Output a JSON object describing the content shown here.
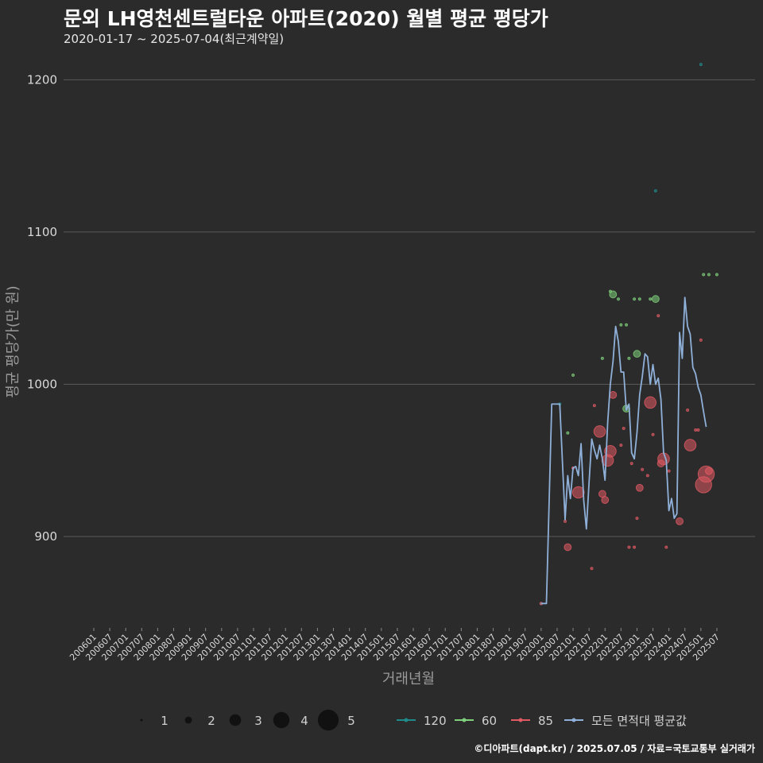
{
  "title": "문외 LH영천센트럴타운 아파트(2020) 월별 평균 평당가",
  "subtitle": "2020-01-17 ~ 2025-07-04(최근계약일)",
  "footer": "©디아파트(dapt.kr) / 2025.07.05 / 자료=국토교통부 실거래가",
  "colors": {
    "background": "#2b2b2c",
    "grid": "#5a5a5a",
    "s120": "#1f8a8a",
    "s60": "#7fd17a",
    "s85": "#e05a63",
    "avg": "#8fb0d8",
    "size_dot": "#111111"
  },
  "chart_data": {
    "type": "scatter",
    "title": "문외 LH영천센트럴타운 아파트(2020) 월별 평균 평당가",
    "xlabel": "거래년월",
    "ylabel": "평균 평당가(만 원)",
    "ylim": [
      840,
      1220
    ],
    "yticks": [
      900,
      1000,
      1100,
      1200
    ],
    "xlim_month_index": [
      0,
      237
    ],
    "xticks": [
      "200601",
      "200607",
      "200701",
      "200707",
      "200801",
      "200807",
      "200901",
      "200907",
      "201001",
      "201007",
      "201101",
      "201107",
      "201201",
      "201207",
      "201301",
      "201307",
      "201401",
      "201407",
      "201501",
      "201507",
      "201601",
      "201607",
      "201701",
      "201707",
      "201801",
      "201807",
      "201901",
      "201907",
      "202001",
      "202007",
      "202101",
      "202107",
      "202201",
      "202207",
      "202301",
      "202307",
      "202401",
      "202407",
      "202501",
      "202507"
    ],
    "size_legend": {
      "values": [
        1,
        2,
        3,
        4,
        5
      ]
    },
    "color_legend": {
      "entries": [
        "120",
        "60",
        "85",
        "모든 면적대 평균값"
      ]
    },
    "series": [
      {
        "name": "120",
        "color_key": "s120",
        "points": [
          {
            "ym": "202001",
            "y": 856,
            "n": 1
          },
          {
            "ym": "202008",
            "y": 987,
            "n": 1
          },
          {
            "ym": "202308",
            "y": 1127,
            "n": 1
          },
          {
            "ym": "202501",
            "y": 1210,
            "n": 1
          }
        ]
      },
      {
        "name": "60",
        "color_key": "s60",
        "points": [
          {
            "ym": "202011",
            "y": 968,
            "n": 1
          },
          {
            "ym": "202101",
            "y": 1006,
            "n": 1
          },
          {
            "ym": "202112",
            "y": 1017,
            "n": 1
          },
          {
            "ym": "202203",
            "y": 1061,
            "n": 1
          },
          {
            "ym": "202204",
            "y": 1059,
            "n": 2
          },
          {
            "ym": "202206",
            "y": 1056,
            "n": 1
          },
          {
            "ym": "202207",
            "y": 1039,
            "n": 1
          },
          {
            "ym": "202209",
            "y": 1039,
            "n": 1
          },
          {
            "ym": "202210",
            "y": 1017,
            "n": 1
          },
          {
            "ym": "202209",
            "y": 984,
            "n": 2
          },
          {
            "ym": "202212",
            "y": 1056,
            "n": 1
          },
          {
            "ym": "202301",
            "y": 1020,
            "n": 2
          },
          {
            "ym": "202302",
            "y": 1056,
            "n": 1
          },
          {
            "ym": "202306",
            "y": 1056,
            "n": 1
          },
          {
            "ym": "202308",
            "y": 1056,
            "n": 2
          },
          {
            "ym": "202502",
            "y": 1072,
            "n": 1
          },
          {
            "ym": "202504",
            "y": 1072,
            "n": 1
          },
          {
            "ym": "202507",
            "y": 1072,
            "n": 1
          }
        ]
      },
      {
        "name": "85",
        "color_key": "s85",
        "points": [
          {
            "ym": "202001",
            "y": 856,
            "n": 1
          },
          {
            "ym": "202010",
            "y": 910,
            "n": 1
          },
          {
            "ym": "202011",
            "y": 893,
            "n": 2
          },
          {
            "ym": "202101",
            "y": 945,
            "n": 1
          },
          {
            "ym": "202103",
            "y": 929,
            "n": 3
          },
          {
            "ym": "202108",
            "y": 879,
            "n": 1
          },
          {
            "ym": "202109",
            "y": 986,
            "n": 1
          },
          {
            "ym": "202111",
            "y": 969,
            "n": 3
          },
          {
            "ym": "202112",
            "y": 928,
            "n": 2
          },
          {
            "ym": "202201",
            "y": 924,
            "n": 2
          },
          {
            "ym": "202202",
            "y": 950,
            "n": 3
          },
          {
            "ym": "202203",
            "y": 956,
            "n": 3
          },
          {
            "ym": "202204",
            "y": 993,
            "n": 2
          },
          {
            "ym": "202207",
            "y": 960,
            "n": 1
          },
          {
            "ym": "202208",
            "y": 971,
            "n": 1
          },
          {
            "ym": "202210",
            "y": 893,
            "n": 1
          },
          {
            "ym": "202211",
            "y": 948,
            "n": 1
          },
          {
            "ym": "202212",
            "y": 893,
            "n": 1
          },
          {
            "ym": "202301",
            "y": 912,
            "n": 1
          },
          {
            "ym": "202302",
            "y": 932,
            "n": 2
          },
          {
            "ym": "202303",
            "y": 944,
            "n": 1
          },
          {
            "ym": "202305",
            "y": 940,
            "n": 1
          },
          {
            "ym": "202306",
            "y": 988,
            "n": 3
          },
          {
            "ym": "202307",
            "y": 967,
            "n": 1
          },
          {
            "ym": "202309",
            "y": 1045,
            "n": 1
          },
          {
            "ym": "202310",
            "y": 948,
            "n": 2
          },
          {
            "ym": "202311",
            "y": 951,
            "n": 3
          },
          {
            "ym": "202312",
            "y": 893,
            "n": 1
          },
          {
            "ym": "202401",
            "y": 943,
            "n": 1
          },
          {
            "ym": "202405",
            "y": 910,
            "n": 2
          },
          {
            "ym": "202408",
            "y": 983,
            "n": 1
          },
          {
            "ym": "202409",
            "y": 960,
            "n": 3
          },
          {
            "ym": "202411",
            "y": 970,
            "n": 1
          },
          {
            "ym": "202412",
            "y": 970,
            "n": 1
          },
          {
            "ym": "202501",
            "y": 1029,
            "n": 1
          },
          {
            "ym": "202502",
            "y": 934,
            "n": 4
          },
          {
            "ym": "202503",
            "y": 941,
            "n": 4
          },
          {
            "ym": "202504",
            "y": 943,
            "n": 2
          }
        ]
      }
    ],
    "average": {
      "name": "모든 면적대 평균값",
      "color_key": "avg",
      "points": [
        {
          "ym": "202001",
          "y": 856
        },
        {
          "ym": "202003",
          "y": 856
        },
        {
          "ym": "202005",
          "y": 987
        },
        {
          "ym": "202008",
          "y": 987
        },
        {
          "ym": "202010",
          "y": 911
        },
        {
          "ym": "202011",
          "y": 940
        },
        {
          "ym": "202012",
          "y": 925
        },
        {
          "ym": "202101",
          "y": 945
        },
        {
          "ym": "202102",
          "y": 946
        },
        {
          "ym": "202103",
          "y": 940
        },
        {
          "ym": "202104",
          "y": 961
        },
        {
          "ym": "202105",
          "y": 924
        },
        {
          "ym": "202106",
          "y": 905
        },
        {
          "ym": "202107",
          "y": 935
        },
        {
          "ym": "202108",
          "y": 964
        },
        {
          "ym": "202109",
          "y": 957
        },
        {
          "ym": "202110",
          "y": 951
        },
        {
          "ym": "202111",
          "y": 960
        },
        {
          "ym": "202112",
          "y": 951
        },
        {
          "ym": "202201",
          "y": 937
        },
        {
          "ym": "202202",
          "y": 975
        },
        {
          "ym": "202203",
          "y": 1000
        },
        {
          "ym": "202204",
          "y": 1015
        },
        {
          "ym": "202205",
          "y": 1038
        },
        {
          "ym": "202206",
          "y": 1028
        },
        {
          "ym": "202207",
          "y": 1008
        },
        {
          "ym": "202208",
          "y": 1008
        },
        {
          "ym": "202209",
          "y": 983
        },
        {
          "ym": "202210",
          "y": 987
        },
        {
          "ym": "202211",
          "y": 955
        },
        {
          "ym": "202212",
          "y": 951
        },
        {
          "ym": "202301",
          "y": 968
        },
        {
          "ym": "202302",
          "y": 993
        },
        {
          "ym": "202303",
          "y": 1005
        },
        {
          "ym": "202304",
          "y": 1020
        },
        {
          "ym": "202305",
          "y": 1018
        },
        {
          "ym": "202306",
          "y": 1000
        },
        {
          "ym": "202307",
          "y": 1013
        },
        {
          "ym": "202308",
          "y": 1000
        },
        {
          "ym": "202309",
          "y": 1004
        },
        {
          "ym": "202310",
          "y": 990
        },
        {
          "ym": "202311",
          "y": 955
        },
        {
          "ym": "202312",
          "y": 950
        },
        {
          "ym": "202401",
          "y": 917
        },
        {
          "ym": "202402",
          "y": 925
        },
        {
          "ym": "202403",
          "y": 912
        },
        {
          "ym": "202404",
          "y": 915
        },
        {
          "ym": "202405",
          "y": 1034
        },
        {
          "ym": "202406",
          "y": 1017
        },
        {
          "ym": "202407",
          "y": 1057
        },
        {
          "ym": "202408",
          "y": 1038
        },
        {
          "ym": "202409",
          "y": 1033
        },
        {
          "ym": "202410",
          "y": 1011
        },
        {
          "ym": "202411",
          "y": 1007
        },
        {
          "ym": "202412",
          "y": 998
        },
        {
          "ym": "202501",
          "y": 993
        },
        {
          "ym": "202502",
          "y": 982
        },
        {
          "ym": "202503",
          "y": 972
        }
      ]
    }
  }
}
